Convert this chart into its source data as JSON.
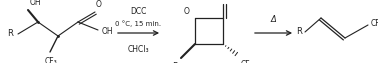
{
  "bg_color": "#ffffff",
  "line_color": "#222222",
  "figsize": [
    3.78,
    0.63
  ],
  "dpi": 100,
  "label_dcc": "DCC",
  "label_conditions": "0 °C, 15 min.",
  "label_solvent": "CHCl₃",
  "label_delta": "Δ"
}
